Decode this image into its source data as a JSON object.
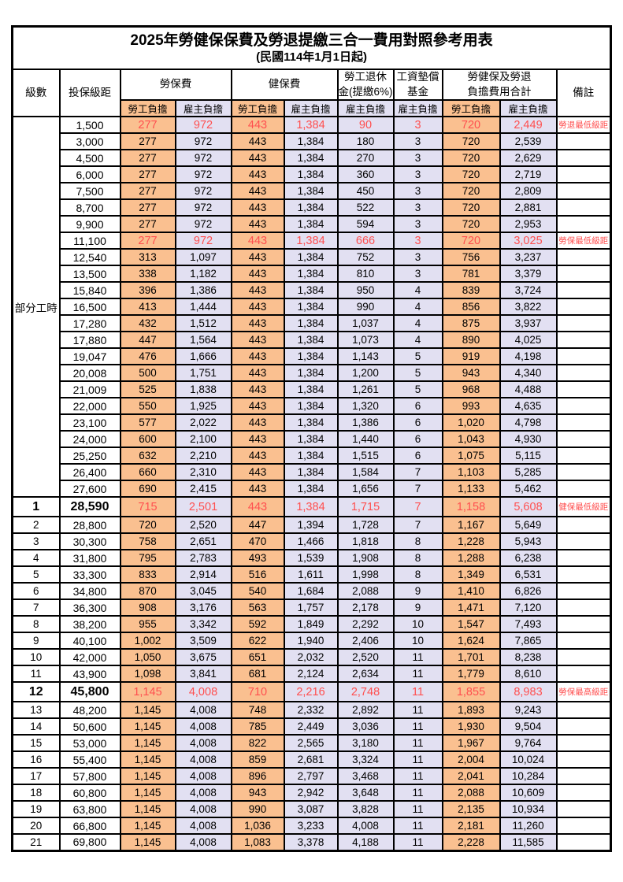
{
  "page": {
    "title": "2025年勞健保保費及勞退提繳三合一費用對照參考用表",
    "subtitle": "(民國114年1月1日起)"
  },
  "colors": {
    "employee_bg": "#FAC090",
    "employer_bg": "#E2E0F2",
    "highlight_red": "#FF4F4F"
  },
  "table": {
    "headers": {
      "level": "級數",
      "bracket": "投保級距",
      "labor": "勞保費",
      "health": "健保費",
      "pension": "勞工退休\n金(提繳6%)",
      "wage_fund": "工資墊償\n基金",
      "total": "勞健保及勞退\n負擔費用合計",
      "note": "備註",
      "employee": "勞工負擔",
      "employer": "雇主負擔"
    },
    "part_time_label": "部分工時",
    "rows": [
      {
        "level": "",
        "bracket": "1,500",
        "values": [
          "277",
          "972",
          "443",
          "1,384",
          "90",
          "3",
          "720",
          "2,449"
        ],
        "note": "勞退最低級距",
        "red": true,
        "em": false
      },
      {
        "level": "",
        "bracket": "3,000",
        "values": [
          "277",
          "972",
          "443",
          "1,384",
          "180",
          "3",
          "720",
          "2,539"
        ],
        "note": "",
        "red": false,
        "em": false
      },
      {
        "level": "",
        "bracket": "4,500",
        "values": [
          "277",
          "972",
          "443",
          "1,384",
          "270",
          "3",
          "720",
          "2,629"
        ],
        "note": "",
        "red": false,
        "em": false
      },
      {
        "level": "",
        "bracket": "6,000",
        "values": [
          "277",
          "972",
          "443",
          "1,384",
          "360",
          "3",
          "720",
          "2,719"
        ],
        "note": "",
        "red": false,
        "em": false
      },
      {
        "level": "",
        "bracket": "7,500",
        "values": [
          "277",
          "972",
          "443",
          "1,384",
          "450",
          "3",
          "720",
          "2,809"
        ],
        "note": "",
        "red": false,
        "em": false
      },
      {
        "level": "",
        "bracket": "8,700",
        "values": [
          "277",
          "972",
          "443",
          "1,384",
          "522",
          "3",
          "720",
          "2,881"
        ],
        "note": "",
        "red": false,
        "em": false
      },
      {
        "level": "",
        "bracket": "9,900",
        "values": [
          "277",
          "972",
          "443",
          "1,384",
          "594",
          "3",
          "720",
          "2,953"
        ],
        "note": "",
        "red": false,
        "em": false
      },
      {
        "level": "",
        "bracket": "11,100",
        "values": [
          "277",
          "972",
          "443",
          "1,384",
          "666",
          "3",
          "720",
          "3,025"
        ],
        "note": "勞保最低級距",
        "red": true,
        "em": false
      },
      {
        "level": "",
        "bracket": "12,540",
        "values": [
          "313",
          "1,097",
          "443",
          "1,384",
          "752",
          "3",
          "756",
          "3,237"
        ],
        "note": "",
        "red": false,
        "em": false
      },
      {
        "level": "",
        "bracket": "13,500",
        "values": [
          "338",
          "1,182",
          "443",
          "1,384",
          "810",
          "3",
          "781",
          "3,379"
        ],
        "note": "",
        "red": false,
        "em": false
      },
      {
        "level": "",
        "bracket": "15,840",
        "values": [
          "396",
          "1,386",
          "443",
          "1,384",
          "950",
          "4",
          "839",
          "3,724"
        ],
        "note": "",
        "red": false,
        "em": false
      },
      {
        "level": "",
        "bracket": "16,500",
        "values": [
          "413",
          "1,444",
          "443",
          "1,384",
          "990",
          "4",
          "856",
          "3,822"
        ],
        "note": "",
        "red": false,
        "em": false
      },
      {
        "level": "",
        "bracket": "17,280",
        "values": [
          "432",
          "1,512",
          "443",
          "1,384",
          "1,037",
          "4",
          "875",
          "3,937"
        ],
        "note": "",
        "red": false,
        "em": false
      },
      {
        "level": "",
        "bracket": "17,880",
        "values": [
          "447",
          "1,564",
          "443",
          "1,384",
          "1,073",
          "4",
          "890",
          "4,025"
        ],
        "note": "",
        "red": false,
        "em": false
      },
      {
        "level": "",
        "bracket": "19,047",
        "values": [
          "476",
          "1,666",
          "443",
          "1,384",
          "1,143",
          "5",
          "919",
          "4,198"
        ],
        "note": "",
        "red": false,
        "em": false
      },
      {
        "level": "",
        "bracket": "20,008",
        "values": [
          "500",
          "1,751",
          "443",
          "1,384",
          "1,200",
          "5",
          "943",
          "4,340"
        ],
        "note": "",
        "red": false,
        "em": false
      },
      {
        "level": "",
        "bracket": "21,009",
        "values": [
          "525",
          "1,838",
          "443",
          "1,384",
          "1,261",
          "5",
          "968",
          "4,488"
        ],
        "note": "",
        "red": false,
        "em": false
      },
      {
        "level": "",
        "bracket": "22,000",
        "values": [
          "550",
          "1,925",
          "443",
          "1,384",
          "1,320",
          "6",
          "993",
          "4,635"
        ],
        "note": "",
        "red": false,
        "em": false
      },
      {
        "level": "",
        "bracket": "23,100",
        "values": [
          "577",
          "2,022",
          "443",
          "1,384",
          "1,386",
          "6",
          "1,020",
          "4,798"
        ],
        "note": "",
        "red": false,
        "em": false
      },
      {
        "level": "",
        "bracket": "24,000",
        "values": [
          "600",
          "2,100",
          "443",
          "1,384",
          "1,440",
          "6",
          "1,043",
          "4,930"
        ],
        "note": "",
        "red": false,
        "em": false
      },
      {
        "level": "",
        "bracket": "25,250",
        "values": [
          "632",
          "2,210",
          "443",
          "1,384",
          "1,515",
          "6",
          "1,075",
          "5,115"
        ],
        "note": "",
        "red": false,
        "em": false
      },
      {
        "level": "",
        "bracket": "26,400",
        "values": [
          "660",
          "2,310",
          "443",
          "1,384",
          "1,584",
          "7",
          "1,103",
          "5,285"
        ],
        "note": "",
        "red": false,
        "em": false
      },
      {
        "level": "",
        "bracket": "27,600",
        "values": [
          "690",
          "2,415",
          "443",
          "1,384",
          "1,656",
          "7",
          "1,133",
          "5,462"
        ],
        "note": "",
        "red": false,
        "em": false
      },
      {
        "level": "1",
        "bracket": "28,590",
        "values": [
          "715",
          "2,501",
          "443",
          "1,384",
          "1,715",
          "7",
          "1,158",
          "5,608"
        ],
        "note": "健保最低級距",
        "red": true,
        "em": true
      },
      {
        "level": "2",
        "bracket": "28,800",
        "values": [
          "720",
          "2,520",
          "447",
          "1,394",
          "1,728",
          "7",
          "1,167",
          "5,649"
        ],
        "note": "",
        "red": false,
        "em": false
      },
      {
        "level": "3",
        "bracket": "30,300",
        "values": [
          "758",
          "2,651",
          "470",
          "1,466",
          "1,818",
          "8",
          "1,228",
          "5,943"
        ],
        "note": "",
        "red": false,
        "em": false
      },
      {
        "level": "4",
        "bracket": "31,800",
        "values": [
          "795",
          "2,783",
          "493",
          "1,539",
          "1,908",
          "8",
          "1,288",
          "6,238"
        ],
        "note": "",
        "red": false,
        "em": false
      },
      {
        "level": "5",
        "bracket": "33,300",
        "values": [
          "833",
          "2,914",
          "516",
          "1,611",
          "1,998",
          "8",
          "1,349",
          "6,531"
        ],
        "note": "",
        "red": false,
        "em": false
      },
      {
        "level": "6",
        "bracket": "34,800",
        "values": [
          "870",
          "3,045",
          "540",
          "1,684",
          "2,088",
          "9",
          "1,410",
          "6,826"
        ],
        "note": "",
        "red": false,
        "em": false
      },
      {
        "level": "7",
        "bracket": "36,300",
        "values": [
          "908",
          "3,176",
          "563",
          "1,757",
          "2,178",
          "9",
          "1,471",
          "7,120"
        ],
        "note": "",
        "red": false,
        "em": false
      },
      {
        "level": "8",
        "bracket": "38,200",
        "values": [
          "955",
          "3,342",
          "592",
          "1,849",
          "2,292",
          "10",
          "1,547",
          "7,493"
        ],
        "note": "",
        "red": false,
        "em": false
      },
      {
        "level": "9",
        "bracket": "40,100",
        "values": [
          "1,002",
          "3,509",
          "622",
          "1,940",
          "2,406",
          "10",
          "1,624",
          "7,865"
        ],
        "note": "",
        "red": false,
        "em": false
      },
      {
        "level": "10",
        "bracket": "42,000",
        "values": [
          "1,050",
          "3,675",
          "651",
          "2,032",
          "2,520",
          "11",
          "1,701",
          "8,238"
        ],
        "note": "",
        "red": false,
        "em": false
      },
      {
        "level": "11",
        "bracket": "43,900",
        "values": [
          "1,098",
          "3,841",
          "681",
          "2,124",
          "2,634",
          "11",
          "1,779",
          "8,610"
        ],
        "note": "",
        "red": false,
        "em": false
      },
      {
        "level": "12",
        "bracket": "45,800",
        "values": [
          "1,145",
          "4,008",
          "710",
          "2,216",
          "2,748",
          "11",
          "1,855",
          "8,983"
        ],
        "note": "勞保最高級距",
        "red": true,
        "em": true
      },
      {
        "level": "13",
        "bracket": "48,200",
        "values": [
          "1,145",
          "4,008",
          "748",
          "2,332",
          "2,892",
          "11",
          "1,893",
          "9,243"
        ],
        "note": "",
        "red": false,
        "em": false
      },
      {
        "level": "14",
        "bracket": "50,600",
        "values": [
          "1,145",
          "4,008",
          "785",
          "2,449",
          "3,036",
          "11",
          "1,930",
          "9,504"
        ],
        "note": "",
        "red": false,
        "em": false
      },
      {
        "level": "15",
        "bracket": "53,000",
        "values": [
          "1,145",
          "4,008",
          "822",
          "2,565",
          "3,180",
          "11",
          "1,967",
          "9,764"
        ],
        "note": "",
        "red": false,
        "em": false
      },
      {
        "level": "16",
        "bracket": "55,400",
        "values": [
          "1,145",
          "4,008",
          "859",
          "2,681",
          "3,324",
          "11",
          "2,004",
          "10,024"
        ],
        "note": "",
        "red": false,
        "em": false
      },
      {
        "level": "17",
        "bracket": "57,800",
        "values": [
          "1,145",
          "4,008",
          "896",
          "2,797",
          "3,468",
          "11",
          "2,041",
          "10,284"
        ],
        "note": "",
        "red": false,
        "em": false
      },
      {
        "level": "18",
        "bracket": "60,800",
        "values": [
          "1,145",
          "4,008",
          "943",
          "2,942",
          "3,648",
          "11",
          "2,088",
          "10,609"
        ],
        "note": "",
        "red": false,
        "em": false
      },
      {
        "level": "19",
        "bracket": "63,800",
        "values": [
          "1,145",
          "4,008",
          "990",
          "3,087",
          "3,828",
          "11",
          "2,135",
          "10,934"
        ],
        "note": "",
        "red": false,
        "em": false
      },
      {
        "level": "20",
        "bracket": "66,800",
        "values": [
          "1,145",
          "4,008",
          "1,036",
          "3,233",
          "4,008",
          "11",
          "2,181",
          "11,260"
        ],
        "note": "",
        "red": false,
        "em": false
      },
      {
        "level": "21",
        "bracket": "69,800",
        "values": [
          "1,145",
          "4,008",
          "1,083",
          "3,378",
          "4,188",
          "11",
          "2,228",
          "11,585"
        ],
        "note": "",
        "red": false,
        "em": false
      }
    ]
  }
}
